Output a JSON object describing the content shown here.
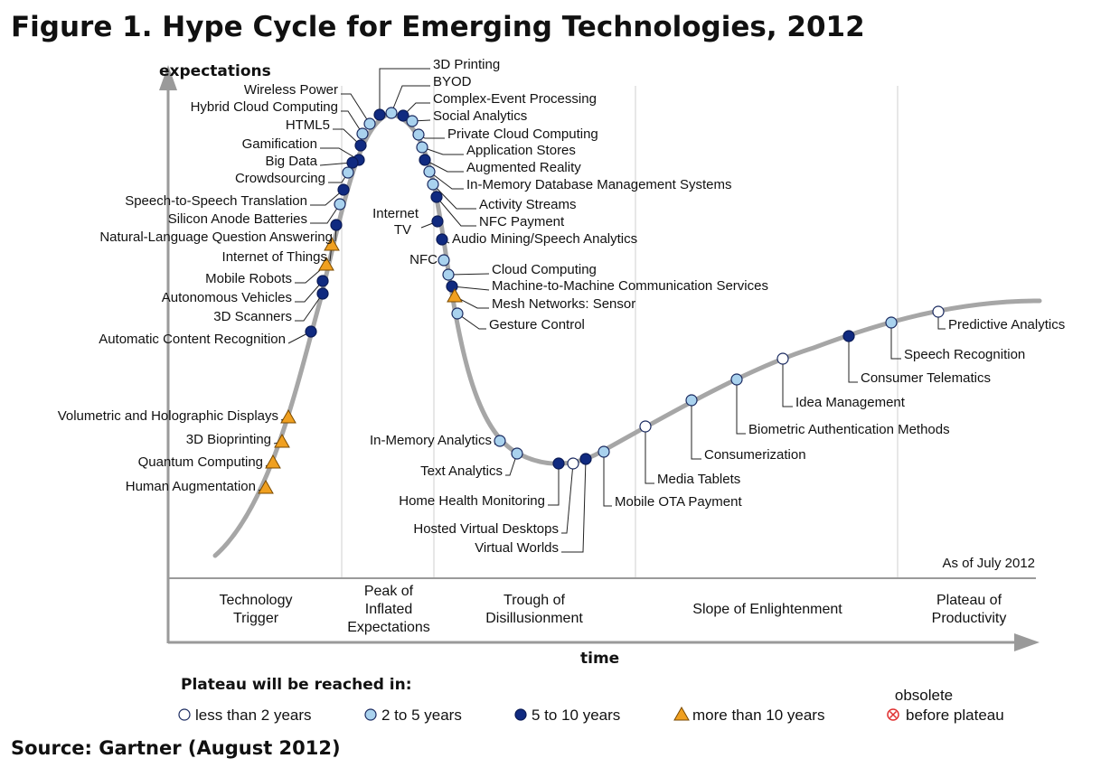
{
  "title": "Figure 1. Hype Cycle for Emerging Technologies, 2012",
  "source": "Source: Gartner (August 2012)",
  "axes": {
    "y_label": "expectations",
    "x_label": "time"
  },
  "as_of": "As of July 2012",
  "phases": [
    {
      "lines": [
        "Technology",
        "Trigger"
      ]
    },
    {
      "lines": [
        "Peak of",
        "Inflated",
        "Expectations"
      ]
    },
    {
      "lines": [
        "Trough of",
        "Disillusionment"
      ]
    },
    {
      "lines": [
        "Slope of  Enlightenment"
      ]
    },
    {
      "lines": [
        "Plateau of",
        "Productivity"
      ]
    }
  ],
  "legend": {
    "heading": "Plateau will be reached in:",
    "items": [
      {
        "key": "lt2",
        "label": "less than 2 years"
      },
      {
        "key": "2to5",
        "label": "2 to 5 years"
      },
      {
        "key": "5to10",
        "label": "5 to 10 years"
      },
      {
        "key": "gt10",
        "label": "more than 10 years"
      },
      {
        "key": "obsolete",
        "lines": [
          "obsolete",
          "before plateau"
        ]
      }
    ]
  },
  "colors": {
    "curve": "#a6a6a6",
    "lt2": "#ffffff",
    "2to5": "#a9d2ee",
    "5to10": "#102a80",
    "gt10": "#f0a020",
    "obsolete": "#e03030",
    "divider": "#cfcfcf"
  },
  "technologies": [
    {
      "name": "3D Printing",
      "key": "5to10"
    },
    {
      "name": "BYOD",
      "key": "2to5"
    },
    {
      "name": "Complex-Event Processing",
      "key": "5to10"
    },
    {
      "name": "Social Analytics",
      "key": "2to5"
    },
    {
      "name": "Private Cloud Computing",
      "key": "2to5"
    },
    {
      "name": "Application Stores",
      "key": "2to5"
    },
    {
      "name": "Augmented Reality",
      "key": "5to10"
    },
    {
      "name": "In-Memory Database Management Systems",
      "key": "2to5"
    },
    {
      "name": "Activity Streams",
      "key": "2to5"
    },
    {
      "name": "NFC Payment",
      "key": "5to10"
    },
    {
      "name": "Audio Mining/Speech Analytics",
      "key": "5to10"
    },
    {
      "name": "Cloud Computing",
      "key": "2to5"
    },
    {
      "name": "Machine-to-Machine Communication Services",
      "key": "5to10"
    },
    {
      "name": "Mesh Networks: Sensor",
      "key": "gt10"
    },
    {
      "name": "Gesture Control",
      "key": "2to5"
    },
    {
      "name": "Wireless Power",
      "key": "2to5"
    },
    {
      "name": "Hybrid Cloud Computing",
      "key": "2to5"
    },
    {
      "name": "HTML5",
      "key": "5to10"
    },
    {
      "name": "Gamification",
      "key": "5to10"
    },
    {
      "name": "Big Data",
      "key": "5to10"
    },
    {
      "name": "Crowdsourcing",
      "key": "2to5"
    },
    {
      "name": "Speech-to-Speech Translation",
      "key": "5to10"
    },
    {
      "name": "Silicon Anode Batteries",
      "key": "2to5"
    },
    {
      "name": "Natural-Language Question Answering",
      "key": "5to10"
    },
    {
      "name": "Internet of Things",
      "key": "gt10"
    },
    {
      "name": "Mobile Robots",
      "key": "gt10"
    },
    {
      "name": "Autonomous Vehicles",
      "key": "5to10"
    },
    {
      "name": "3D Scanners",
      "key": "5to10"
    },
    {
      "name": "Automatic Content Recognition",
      "key": "5to10"
    },
    {
      "name": "Volumetric and Holographic Displays",
      "key": "gt10"
    },
    {
      "name": "3D Bioprinting",
      "key": "gt10"
    },
    {
      "name": "Quantum Computing",
      "key": "gt10"
    },
    {
      "name": "Human Augmentation",
      "key": "gt10"
    },
    {
      "name": "Internet TV",
      "lines": [
        "Internet",
        "TV"
      ],
      "key": "5to10"
    },
    {
      "name": "NFC",
      "key": "2to5"
    },
    {
      "name": "In-Memory Analytics",
      "key": "2to5"
    },
    {
      "name": "Text Analytics",
      "key": "2to5"
    },
    {
      "name": "Home Health Monitoring",
      "key": "5to10"
    },
    {
      "name": "Hosted Virtual Desktops",
      "key": "lt2"
    },
    {
      "name": "Virtual Worlds",
      "key": "5to10"
    },
    {
      "name": "Mobile OTA Payment",
      "key": "2to5"
    },
    {
      "name": "Media Tablets",
      "key": "lt2"
    },
    {
      "name": "Consumerization",
      "key": "2to5"
    },
    {
      "name": "Biometric Authentication Methods",
      "key": "2to5"
    },
    {
      "name": "Idea Management",
      "key": "lt2"
    },
    {
      "name": "Consumer Telematics",
      "key": "5to10"
    },
    {
      "name": "Speech Recognition",
      "key": "2to5"
    },
    {
      "name": "Predictive Analytics",
      "key": "lt2"
    }
  ]
}
